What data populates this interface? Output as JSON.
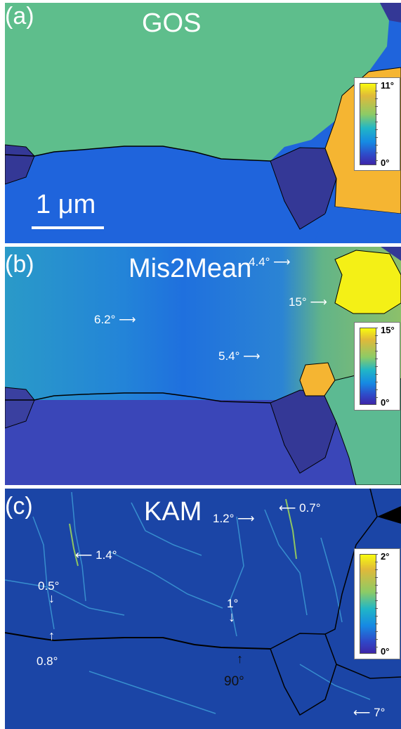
{
  "panels": {
    "a": {
      "label": "(a)",
      "title": "GOS",
      "scale_label": "1 μm",
      "colorbar": {
        "max": "11°",
        "min": "0°"
      }
    },
    "b": {
      "label": "(b)",
      "title": "Mis2Mean",
      "colorbar": {
        "max": "15°",
        "min": "0°"
      },
      "annotations": [
        "4.4°",
        "15°",
        "6.2°",
        "5.4°"
      ]
    },
    "c": {
      "label": "(c)",
      "title": "KAM",
      "colorbar": {
        "max": "2°",
        "min": "0°"
      },
      "annotations": [
        "1.2°",
        "0.7°",
        "1.4°",
        "0.5°",
        "1°",
        "0.8°",
        "90°",
        "7°"
      ]
    }
  },
  "colors": {
    "green": "#5ebe8c",
    "blue": "#1f64dc",
    "navy": "#343896",
    "orange": "#f5b532",
    "yellow": "#f4f016",
    "kam_bg": "#1b45a6"
  }
}
